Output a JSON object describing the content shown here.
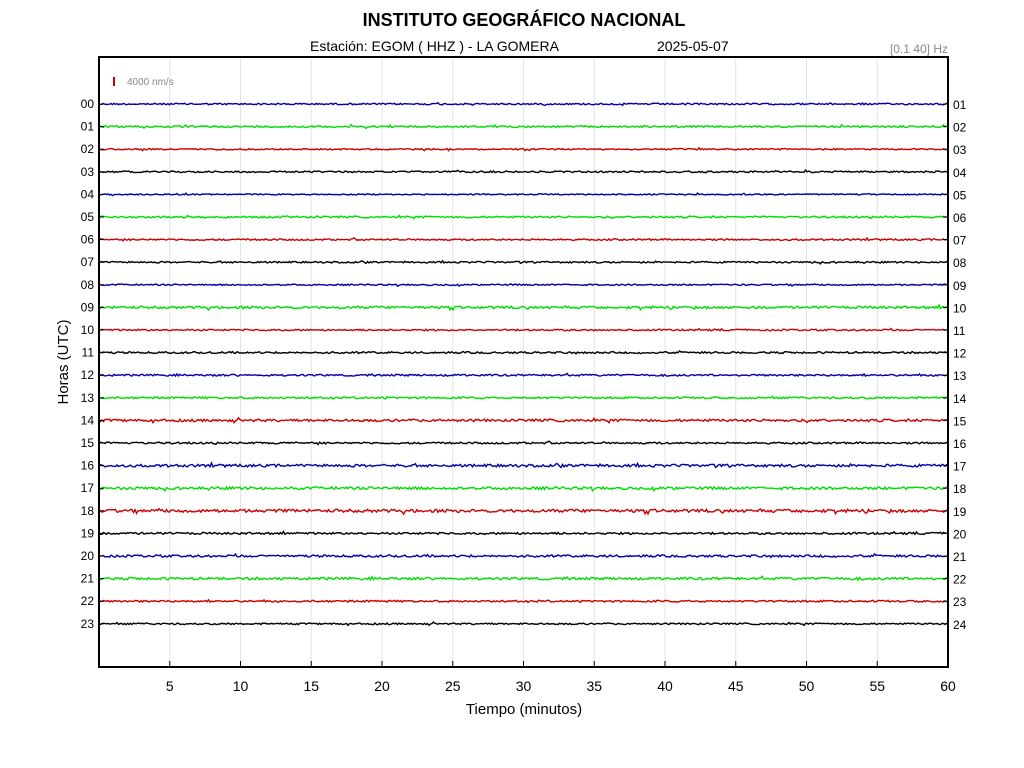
{
  "chart_data": {
    "type": "line",
    "title": "INSTITUTO GEOGRÁFICO NACIONAL",
    "subtitle": {
      "station": "Estación:  EGOM ( HHZ ) - LA GOMERA",
      "date": "2025-05-07",
      "filter": "[0.1 40] Hz"
    },
    "xlabel": "Tiempo (minutos)",
    "ylabel": "Horas (UTC)",
    "xlim": [
      0,
      60
    ],
    "x_ticks": [
      5,
      10,
      15,
      20,
      25,
      30,
      35,
      40,
      45,
      50,
      55,
      60
    ],
    "amplitude_scale": "4000 nm/s",
    "scale_bar_color": "#cc0000",
    "grid": true,
    "traces": [
      {
        "left": "00",
        "right": "01",
        "color": "#0000aa",
        "noise": 0.8
      },
      {
        "left": "01",
        "right": "02",
        "color": "#00dd00",
        "noise": 0.9
      },
      {
        "left": "02",
        "right": "03",
        "color": "#cc0000",
        "noise": 0.7
      },
      {
        "left": "03",
        "right": "04",
        "color": "#000000",
        "noise": 0.8
      },
      {
        "left": "04",
        "right": "05",
        "color": "#0000aa",
        "noise": 0.6
      },
      {
        "left": "05",
        "right": "06",
        "color": "#00dd00",
        "noise": 0.9
      },
      {
        "left": "06",
        "right": "07",
        "color": "#cc0000",
        "noise": 0.8
      },
      {
        "left": "07",
        "right": "08",
        "color": "#000000",
        "noise": 0.8
      },
      {
        "left": "08",
        "right": "09",
        "color": "#0000aa",
        "noise": 0.7
      },
      {
        "left": "09",
        "right": "10",
        "color": "#00dd00",
        "noise": 1.2
      },
      {
        "left": "10",
        "right": "11",
        "color": "#cc0000",
        "noise": 0.8
      },
      {
        "left": "11",
        "right": "12",
        "color": "#000000",
        "noise": 0.9
      },
      {
        "left": "12",
        "right": "13",
        "color": "#0000aa",
        "noise": 0.9
      },
      {
        "left": "13",
        "right": "14",
        "color": "#00dd00",
        "noise": 0.9
      },
      {
        "left": "14",
        "right": "15",
        "color": "#cc0000",
        "noise": 1.2
      },
      {
        "left": "15",
        "right": "16",
        "color": "#000000",
        "noise": 0.9
      },
      {
        "left": "16",
        "right": "17",
        "color": "#0000aa",
        "noise": 1.3
      },
      {
        "left": "17",
        "right": "18",
        "color": "#00dd00",
        "noise": 1.3
      },
      {
        "left": "18",
        "right": "19",
        "color": "#cc0000",
        "noise": 1.5
      },
      {
        "left": "19",
        "right": "20",
        "color": "#000000",
        "noise": 1.0
      },
      {
        "left": "20",
        "right": "21",
        "color": "#0000aa",
        "noise": 1.1
      },
      {
        "left": "21",
        "right": "22",
        "color": "#00dd00",
        "noise": 1.2
      },
      {
        "left": "22",
        "right": "23",
        "color": "#cc0000",
        "noise": 0.9
      },
      {
        "left": "23",
        "right": "24",
        "color": "#000000",
        "noise": 0.8
      }
    ]
  }
}
